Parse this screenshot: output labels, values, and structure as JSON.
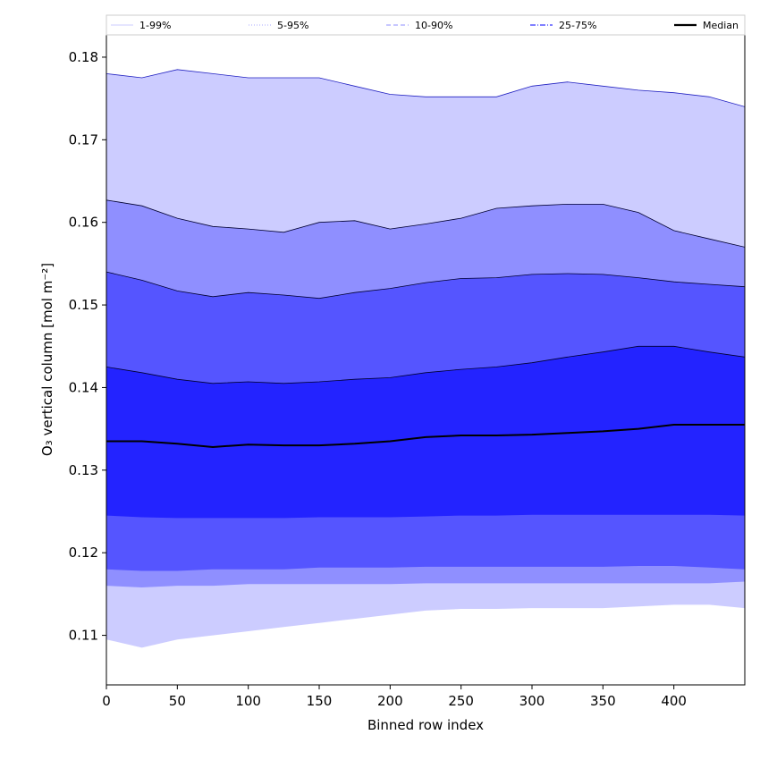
{
  "chart_data": {
    "type": "area",
    "xlabel": "Binned row index",
    "ylabel": "O₃ vertical column [mol m⁻²]",
    "xlim": [
      0,
      450
    ],
    "ylim": [
      0.104,
      0.1827
    ],
    "xticks": [
      0,
      50,
      100,
      150,
      200,
      250,
      300,
      350,
      400
    ],
    "yticks": [
      0.11,
      0.12,
      0.13,
      0.14,
      0.15,
      0.16,
      0.17,
      0.18
    ],
    "ytick_labels": [
      "0.11",
      "0.12",
      "0.13",
      "0.14",
      "0.15",
      "0.16",
      "0.17",
      "0.18"
    ],
    "legend_position": "top, outside plot, single row",
    "legend": [
      {
        "label": "1-99%",
        "style": "solid",
        "color": "#ccccff"
      },
      {
        "label": "5-95%",
        "style": "dotted",
        "color": "#8f8fff"
      },
      {
        "label": "10-90%",
        "style": "dashed",
        "color": "#8f8fff"
      },
      {
        "label": "25-75%",
        "style": "dashdot",
        "color": "#5555ff"
      },
      {
        "label": "Median",
        "style": "solid",
        "color": "#000000"
      }
    ],
    "colors": {
      "band_1_99": "#ccccff",
      "band_5_95": "#8f8fff",
      "band_10_90": "#5555ff",
      "band_25_75": "#2323ff",
      "median": "#000000"
    },
    "x": [
      0,
      25,
      50,
      75,
      100,
      125,
      150,
      175,
      200,
      225,
      250,
      275,
      300,
      325,
      350,
      375,
      400,
      425,
      450
    ],
    "series": [
      {
        "name": "1-99%",
        "lower": [
          0.1095,
          0.1085,
          0.1095,
          0.11,
          0.1105,
          0.111,
          0.1115,
          0.112,
          0.1125,
          0.113,
          0.1132,
          0.1132,
          0.1133,
          0.1133,
          0.1133,
          0.1135,
          0.1137,
          0.1137,
          0.1133
        ],
        "upper": [
          0.178,
          0.1775,
          0.1785,
          0.178,
          0.1775,
          0.1775,
          0.1775,
          0.1765,
          0.1755,
          0.1752,
          0.1752,
          0.1752,
          0.1765,
          0.177,
          0.1765,
          0.176,
          0.1757,
          0.1752,
          0.174
        ]
      },
      {
        "name": "5-95%",
        "lower": [
          0.116,
          0.1158,
          0.116,
          0.116,
          0.1162,
          0.1162,
          0.1162,
          0.1162,
          0.1162,
          0.1163,
          0.1163,
          0.1163,
          0.1163,
          0.1163,
          0.1163,
          0.1163,
          0.1163,
          0.1163,
          0.1165
        ],
        "upper": [
          0.1627,
          0.162,
          0.1605,
          0.1595,
          0.1592,
          0.1588,
          0.16,
          0.1602,
          0.1592,
          0.1598,
          0.1605,
          0.1617,
          0.162,
          0.1622,
          0.1622,
          0.1612,
          0.159,
          0.158,
          0.157
        ]
      },
      {
        "name": "10-90%",
        "lower": [
          0.118,
          0.1178,
          0.1178,
          0.118,
          0.118,
          0.118,
          0.1182,
          0.1182,
          0.1182,
          0.1183,
          0.1183,
          0.1183,
          0.1183,
          0.1183,
          0.1183,
          0.1184,
          0.1184,
          0.1182,
          0.118
        ],
        "upper": [
          0.154,
          0.153,
          0.1517,
          0.151,
          0.1515,
          0.1512,
          0.1508,
          0.1515,
          0.152,
          0.1527,
          0.1532,
          0.1533,
          0.1537,
          0.1538,
          0.1537,
          0.1533,
          0.1528,
          0.1525,
          0.1522
        ]
      },
      {
        "name": "25-75%",
        "lower": [
          0.1245,
          0.1243,
          0.1242,
          0.1242,
          0.1242,
          0.1242,
          0.1243,
          0.1243,
          0.1243,
          0.1244,
          0.1245,
          0.1245,
          0.1246,
          0.1246,
          0.1246,
          0.1246,
          0.1246,
          0.1246,
          0.1245
        ],
        "upper": [
          0.1425,
          0.1418,
          0.141,
          0.1405,
          0.1407,
          0.1405,
          0.1407,
          0.141,
          0.1412,
          0.1418,
          0.1422,
          0.1425,
          0.143,
          0.1437,
          0.1443,
          0.145,
          0.145,
          0.1443,
          0.1437
        ]
      },
      {
        "name": "Median",
        "values": [
          0.1335,
          0.1335,
          0.1332,
          0.1328,
          0.1331,
          0.133,
          0.133,
          0.1332,
          0.1335,
          0.134,
          0.1342,
          0.1342,
          0.1343,
          0.1345,
          0.1347,
          0.135,
          0.1355,
          0.1355,
          0.1355
        ]
      }
    ]
  }
}
